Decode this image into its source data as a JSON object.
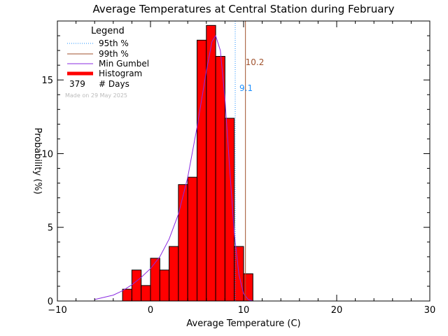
{
  "chart_data": {
    "type": "bar",
    "title": "Average Temperatures at Central Station during February",
    "xlabel": "Average Temperature (C)",
    "ylabel": "Probability (%)",
    "xlim": [
      -10,
      30
    ],
    "ylim": [
      0,
      19
    ],
    "xticks": [
      -10,
      0,
      10,
      20,
      30
    ],
    "yticks": [
      0,
      5,
      10,
      15
    ],
    "xtick_labels": [
      "−10",
      "0",
      "10",
      "20",
      "30"
    ],
    "ytick_labels": [
      "0",
      "5",
      "10",
      "15"
    ],
    "bin_width": 1,
    "bins_start": [
      -3,
      -2,
      -1,
      0,
      1,
      2,
      3,
      4,
      5,
      6,
      7,
      8,
      9,
      10
    ],
    "histogram": [
      0.8,
      2.1,
      1.05,
      2.9,
      2.1,
      3.7,
      7.9,
      8.4,
      17.7,
      18.7,
      16.6,
      12.4,
      3.7,
      1.85
    ],
    "gumbel_curve": {
      "x": [
        -6,
        -4,
        -3,
        -2,
        -1,
        0,
        1,
        2,
        3,
        4,
        5,
        6,
        6.6,
        7,
        7.5,
        8,
        8.5,
        9,
        9.5,
        10,
        10.5,
        11
      ],
      "y": [
        0.1,
        0.4,
        0.7,
        1.1,
        1.6,
        2.2,
        3.0,
        4.2,
        5.9,
        8.4,
        11.8,
        15.6,
        17.6,
        18.0,
        17.0,
        13.7,
        9.0,
        4.6,
        1.8,
        0.5,
        0.1,
        0.0
      ]
    },
    "p95": 9.1,
    "p99": 10.2,
    "p95_label": "9.1",
    "p99_label": "10.2",
    "legend": {
      "title": "Legend",
      "items": [
        {
          "label": "95th %",
          "style": "dotted",
          "color": "#1e90ff"
        },
        {
          "label": "99th %",
          "style": "solid",
          "color": "#a0522d"
        },
        {
          "label": "Min Gumbel",
          "style": "solid",
          "color": "#8a2be2"
        },
        {
          "label": "Histogram",
          "style": "thick",
          "color": "#ff0000"
        }
      ],
      "days_count": "379",
      "days_label": "# Days",
      "made_on": "Made on 29 May 2025"
    },
    "colors": {
      "bar_fill": "#ff0000",
      "bar_edge": "#000000",
      "gumbel": "#8a2be2",
      "p95": "#1e90ff",
      "p99": "#a0522d",
      "made_on": "#bbbbbb"
    }
  }
}
